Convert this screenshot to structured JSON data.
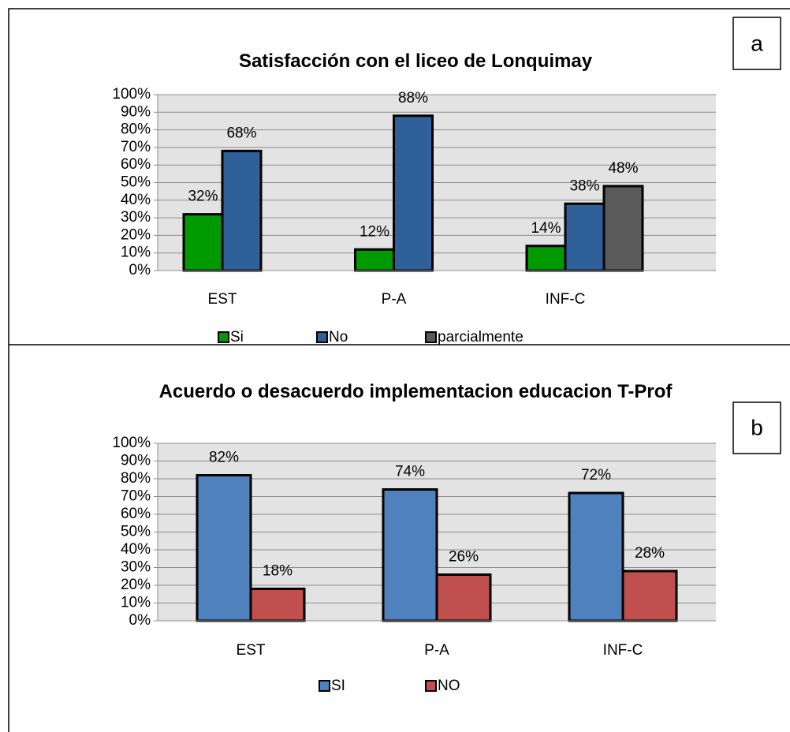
{
  "chart_data": [
    {
      "type": "bar",
      "panel": "a",
      "title": "Satisfacción con el liceo de Lonquimay",
      "categories": [
        "EST",
        "P-A",
        "INF-C"
      ],
      "series": [
        {
          "name": "Si",
          "color": "#009a00",
          "values": [
            32,
            12,
            14
          ],
          "value_labels": [
            "32%",
            "12%",
            "14%"
          ]
        },
        {
          "name": "No",
          "color": "#30609a",
          "values": [
            68,
            88,
            38
          ],
          "value_labels": [
            "68%",
            "88%",
            "38%"
          ]
        },
        {
          "name": "parcialmente",
          "color": "#5a5a5a",
          "values": [
            null,
            null,
            48
          ],
          "value_labels": [
            null,
            null,
            "48%"
          ]
        }
      ],
      "ylim": [
        0,
        100
      ],
      "yticks": [
        {
          "value": 0,
          "label": "0%"
        },
        {
          "value": 10,
          "label": "10%"
        },
        {
          "value": 20,
          "label": "20%"
        },
        {
          "value": 30,
          "label": "30%"
        },
        {
          "value": 40,
          "label": "40%"
        },
        {
          "value": 50,
          "label": "50%"
        },
        {
          "value": 60,
          "label": "60%"
        },
        {
          "value": 70,
          "label": "70%"
        },
        {
          "value": 80,
          "label": "80%"
        },
        {
          "value": 90,
          "label": "90%"
        },
        {
          "value": 100,
          "label": "100%"
        }
      ],
      "grid": true,
      "legend": "bottom"
    },
    {
      "type": "bar",
      "panel": "b",
      "title": "Acuerdo o desacuerdo implementacion educacion T-Prof",
      "categories": [
        "EST",
        "P-A",
        "INF-C"
      ],
      "series": [
        {
          "name": "SI",
          "color": "#4f81bd",
          "values": [
            82,
            74,
            72
          ],
          "value_labels": [
            "82%",
            "74%",
            "72%"
          ]
        },
        {
          "name": "NO",
          "color": "#c0504d",
          "values": [
            18,
            26,
            28
          ],
          "value_labels": [
            "18%",
            "26%",
            "28%"
          ]
        }
      ],
      "ylim": [
        0,
        100
      ],
      "yticks": [
        {
          "value": 0,
          "label": "0%"
        },
        {
          "value": 10,
          "label": "10%"
        },
        {
          "value": 20,
          "label": "20%"
        },
        {
          "value": 30,
          "label": "30%"
        },
        {
          "value": 40,
          "label": "40%"
        },
        {
          "value": 50,
          "label": "50%"
        },
        {
          "value": 60,
          "label": "60%"
        },
        {
          "value": 70,
          "label": "70%"
        },
        {
          "value": 80,
          "label": "80%"
        },
        {
          "value": 90,
          "label": "90%"
        },
        {
          "value": 100,
          "label": "100%"
        }
      ],
      "grid": true,
      "legend": "bottom"
    }
  ]
}
